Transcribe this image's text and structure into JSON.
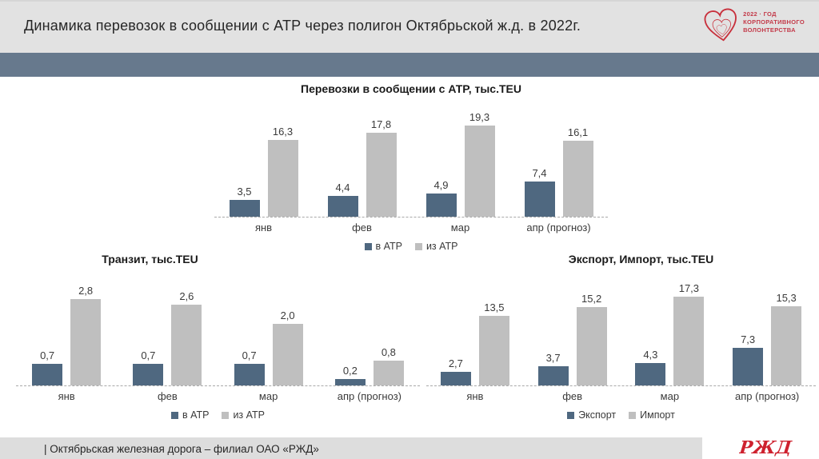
{
  "header": {
    "title": "Динамика перевозок в сообщении с АТР через полигон Октябрьской ж.д. в 2022г.",
    "badge": {
      "line1": "2022 · ГОД",
      "line2": "КОРПОРАТИВНОГО",
      "line3": "ВОЛОНТЕРСТВА"
    }
  },
  "footer": {
    "text": "| Октябрьская железная дорога – филиал ОАО «РЖД»",
    "logo_text": "РЖД"
  },
  "colors": {
    "series_dark_blue": "#4f6880",
    "series_gray": "#bfbfbf",
    "slate_bar": "#67798d",
    "accent_red": "#c8303c",
    "header_bg": "#e2e2e2",
    "footer_bg": "#dddddd"
  },
  "chart_data": [
    {
      "id": "perevozki-atr",
      "type": "bar",
      "title": "Перевозки в сообщении с АТР, тыс.TEU",
      "categories": [
        "янв",
        "фев",
        "мар",
        "апр (прогноз)"
      ],
      "series": [
        {
          "name": "в АТР",
          "color": "#4f6880",
          "values": [
            3.5,
            4.4,
            4.9,
            7.4
          ]
        },
        {
          "name": "из АТР",
          "color": "#bfbfbf",
          "values": [
            16.3,
            17.8,
            19.3,
            16.1
          ]
        }
      ],
      "ylim": [
        0,
        20
      ],
      "grid": false,
      "legend_position": "bottom"
    },
    {
      "id": "tranzit",
      "type": "bar",
      "title": "Транзит, тыс.TEU",
      "categories": [
        "янв",
        "фев",
        "мар",
        "апр (прогноз)"
      ],
      "series": [
        {
          "name": "в АТР",
          "color": "#4f6880",
          "values": [
            0.7,
            0.7,
            0.7,
            0.2
          ]
        },
        {
          "name": "из АТР",
          "color": "#bfbfbf",
          "values": [
            2.8,
            2.6,
            2.0,
            0.8
          ]
        }
      ],
      "ylim": [
        0,
        3
      ],
      "grid": false,
      "legend_position": "bottom"
    },
    {
      "id": "export-import",
      "type": "bar",
      "title": "Экспорт, Импорт, тыс.TEU",
      "categories": [
        "янв",
        "фев",
        "мар",
        "апр (прогноз)"
      ],
      "series": [
        {
          "name": "Экспорт",
          "color": "#4f6880",
          "values": [
            2.7,
            3.7,
            4.3,
            7.3
          ]
        },
        {
          "name": "Импорт",
          "color": "#bfbfbf",
          "values": [
            13.5,
            15.2,
            17.3,
            15.3
          ]
        }
      ],
      "ylim": [
        0,
        18
      ],
      "grid": false,
      "legend_position": "bottom"
    }
  ]
}
